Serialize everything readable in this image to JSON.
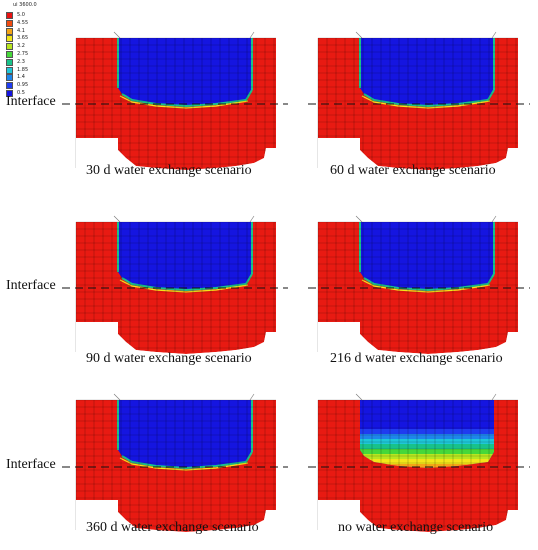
{
  "legend": {
    "title": "ui  3600.0",
    "entries": [
      {
        "label": "5.0",
        "color": "#e81212"
      },
      {
        "label": "4.55",
        "color": "#ef4a10"
      },
      {
        "label": "4.1",
        "color": "#f5a516"
      },
      {
        "label": "3.65",
        "color": "#f2e61a"
      },
      {
        "label": "3.2",
        "color": "#b8e620"
      },
      {
        "label": "2.75",
        "color": "#46d83a"
      },
      {
        "label": "2.3",
        "color": "#18c28a"
      },
      {
        "label": "1.85",
        "color": "#1ec7d8"
      },
      {
        "label": "1.4",
        "color": "#1e86ea"
      },
      {
        "label": "0.95",
        "color": "#1f3cf0"
      },
      {
        "label": "0.5",
        "color": "#1515e0"
      }
    ]
  },
  "interface_label": "Interface",
  "panels": [
    {
      "caption": "30 d water exchange scenario",
      "show_interface_label": true
    },
    {
      "caption": "60 d water exchange scenario",
      "show_interface_label": false
    },
    {
      "caption": "90 d water exchange scenario",
      "show_interface_label": true
    },
    {
      "caption": "216 d water exchange scenario",
      "show_interface_label": false
    },
    {
      "caption": "360 d water exchange scenario",
      "show_interface_label": true
    },
    {
      "caption": "no water exchange scenario",
      "show_interface_label": false
    }
  ],
  "colors": {
    "red": "#e81a12",
    "blue": "#1515e0",
    "mesh": "#000000"
  }
}
